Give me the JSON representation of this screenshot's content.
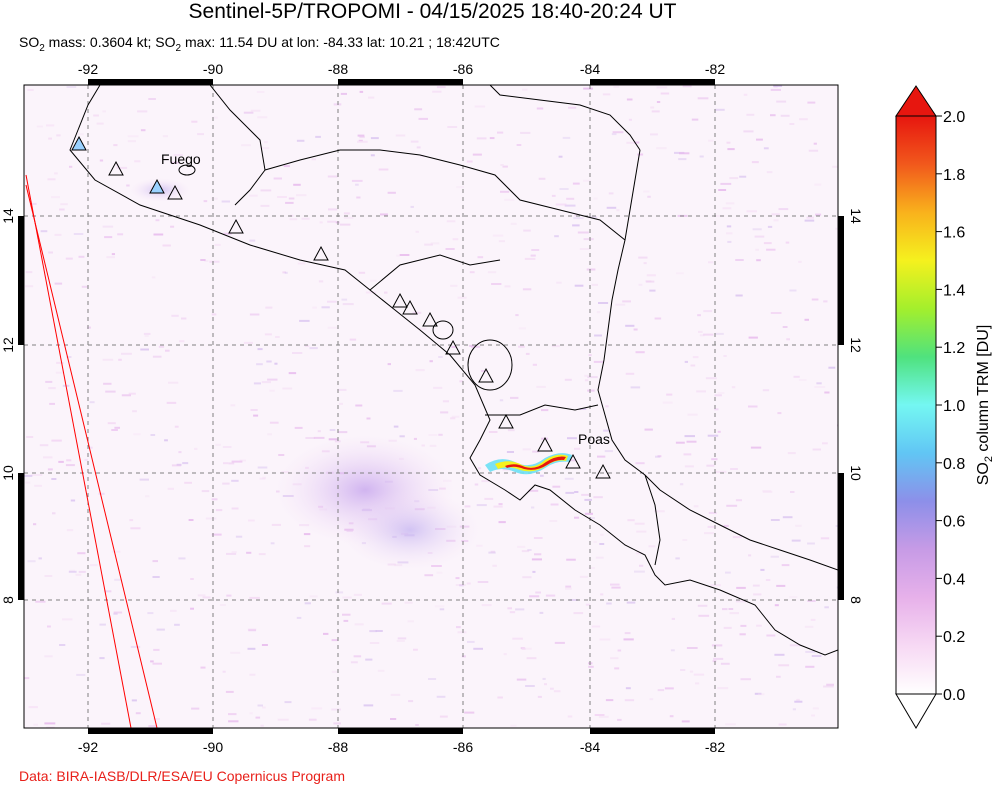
{
  "title": "Sentinel-5P/TROPOMI - 04/15/2025 18:40-20:24 UT",
  "subtitle": {
    "mass_prefix": "SO",
    "mass_sub": "2",
    "mass_text": " mass: 0.3604 kt; SO",
    "max_sub": "2",
    "max_text": " max: 11.54 DU at lon: -84.33 lat: 10.21 ; 18:42UTC"
  },
  "credit": "Data: BIRA-IASB/DLR/ESA/EU Copernicus Program",
  "map": {
    "lon_ticks": [
      "-92",
      "-90",
      "-88",
      "-86",
      "-84",
      "-82"
    ],
    "lat_ticks": [
      "14",
      "12",
      "10",
      "8"
    ],
    "volcano_labels": {
      "fuego": "Fuego",
      "poas": "Poas"
    },
    "colors": {
      "coast": "#000000",
      "orbit_edge": "#ff0000",
      "grid": "#808080"
    }
  },
  "colorbar": {
    "label_prefix": "SO",
    "label_sub": "2",
    "label_suffix": " column TRM [DU]",
    "ticks": [
      "2.0",
      "1.8",
      "1.6",
      "1.4",
      "1.2",
      "1.0",
      "0.8",
      "0.6",
      "0.4",
      "0.2",
      "0.0"
    ],
    "colors": [
      "#ffffff",
      "#f7d9f4",
      "#e7b1ea",
      "#c79be6",
      "#8d8fe9",
      "#61c6f4",
      "#74f7f2",
      "#4fe27e",
      "#a4ef2c",
      "#f5f11e",
      "#f9b21c",
      "#f1581c",
      "#e7160f"
    ]
  }
}
